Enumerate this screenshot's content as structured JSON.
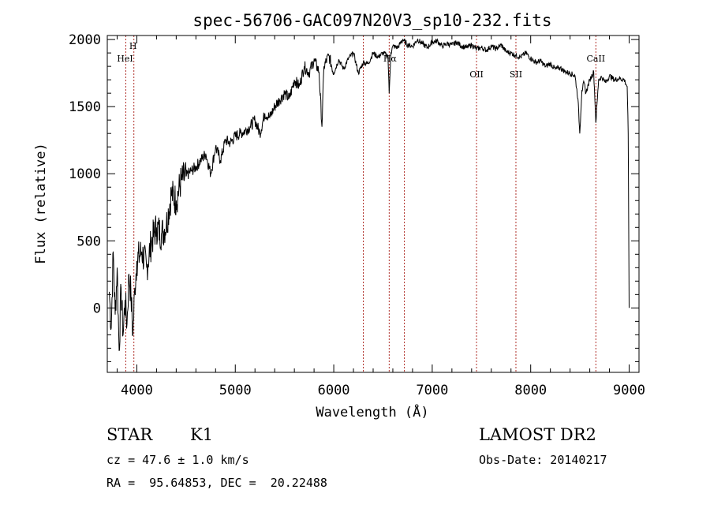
{
  "chart_data": {
    "type": "line",
    "title": "spec-56706-GAC097N20V3_sp10-232.fits",
    "xlabel": "Wavelength (Å)",
    "ylabel": "Flux (relative)",
    "xlim": [
      3700,
      9100
    ],
    "ylim": [
      -480,
      2030
    ],
    "xticks": [
      4000,
      5000,
      6000,
      7000,
      8000,
      9000
    ],
    "xtick_labels": [
      "4000",
      "5000",
      "6000",
      "7000",
      "8000",
      "9000"
    ],
    "yticks": [
      0,
      500,
      1000,
      1500,
      2000
    ],
    "ytick_labels": [
      "0",
      "500",
      "1000",
      "1500",
      "2000"
    ],
    "grid": false,
    "series": [
      {
        "x": [
          3720,
          3740,
          3760,
          3780,
          3800,
          3820,
          3840,
          3860,
          3880,
          3900,
          3920,
          3940,
          3960,
          3980,
          4000,
          4050,
          4100,
          4150,
          4200,
          4250,
          4300,
          4350,
          4400,
          4450,
          4500,
          4550,
          4600,
          4650,
          4700,
          4750,
          4800,
          4850,
          4900,
          4950,
          5000,
          5050,
          5100,
          5150,
          5200,
          5250,
          5300,
          5350,
          5400,
          5450,
          5500,
          5550,
          5600,
          5650,
          5700,
          5750,
          5800,
          5850,
          5880,
          5900,
          5950,
          6000,
          6050,
          6100,
          6150,
          6200,
          6250,
          6300,
          6350,
          6400,
          6450,
          6500,
          6550,
          6563,
          6580,
          6600,
          6650,
          6700,
          6750,
          6800,
          6850,
          6900,
          6950,
          7000,
          7050,
          7100,
          7150,
          7200,
          7250,
          7300,
          7350,
          7400,
          7450,
          7500,
          7550,
          7600,
          7650,
          7700,
          7750,
          7800,
          7850,
          7900,
          7950,
          8000,
          8050,
          8100,
          8150,
          8200,
          8250,
          8300,
          8350,
          8400,
          8450,
          8480,
          8498,
          8520,
          8542,
          8560,
          8600,
          8640,
          8662,
          8690,
          8720,
          8760,
          8800,
          8850,
          8900,
          8950,
          8980,
          8990,
          9000
        ],
        "y": [
          120,
          -150,
          420,
          -50,
          300,
          -320,
          150,
          -200,
          60,
          -120,
          250,
          100,
          -200,
          150,
          350,
          420,
          300,
          500,
          600,
          550,
          620,
          850,
          800,
          950,
          980,
          1020,
          1050,
          1100,
          1150,
          1000,
          1200,
          1100,
          1250,
          1230,
          1280,
          1300,
          1320,
          1350,
          1400,
          1300,
          1450,
          1420,
          1500,
          1550,
          1600,
          1560,
          1700,
          1650,
          1800,
          1750,
          1850,
          1760,
          1350,
          1800,
          1880,
          1750,
          1850,
          1780,
          1860,
          1900,
          1750,
          1830,
          1820,
          1900,
          1870,
          1900,
          1880,
          1600,
          1900,
          1950,
          1940,
          2000,
          1960,
          1950,
          2000,
          1970,
          1940,
          1980,
          1990,
          1950,
          1970,
          1960,
          1980,
          1950,
          1940,
          1960,
          1930,
          1940,
          1920,
          1950,
          1930,
          1960,
          1910,
          1900,
          1880,
          1870,
          1900,
          1860,
          1830,
          1840,
          1800,
          1820,
          1780,
          1790,
          1760,
          1750,
          1730,
          1560,
          1300,
          1620,
          1680,
          1600,
          1700,
          1760,
          1380,
          1700,
          1720,
          1680,
          1730,
          1700,
          1710,
          1700,
          1650,
          1300,
          0
        ]
      }
    ],
    "line_markers": [
      {
        "label": "HeI",
        "x": 3888
      },
      {
        "label": "H",
        "x": 3970
      },
      {
        "label": "",
        "x": 6300
      },
      {
        "label": "Hα",
        "x": 6563
      },
      {
        "label": "",
        "x": 6717
      },
      {
        "label": "OII",
        "x": 7450
      },
      {
        "label": "SII",
        "x": 7850
      },
      {
        "label": "CaII",
        "x": 8662
      }
    ]
  },
  "info": {
    "object_class": "STAR",
    "subclass": "K1",
    "redshift_line": "cz = 47.6 ± 1.0 km/s",
    "coords_line": "RA =  95.64853, DEC =  20.22488",
    "survey": "LAMOST DR2",
    "obs_date": "Obs-Date: 20140217"
  },
  "colors": {
    "spectrum": "#000000",
    "markers": "#b0302a",
    "text": "#000000"
  }
}
